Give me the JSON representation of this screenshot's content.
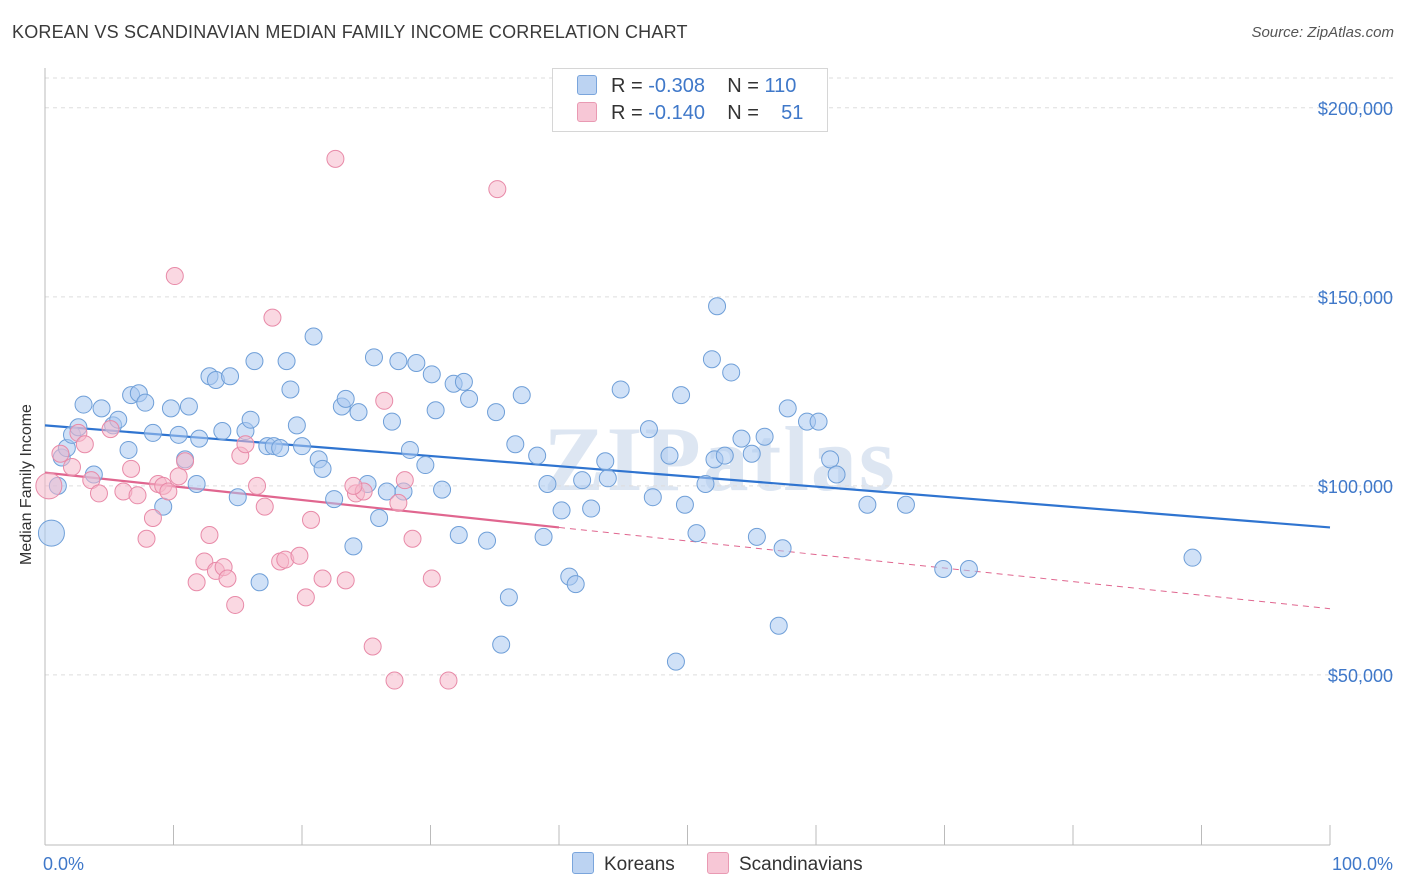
{
  "title": "KOREAN VS SCANDINAVIAN MEDIAN FAMILY INCOME CORRELATION CHART",
  "source": "Source: ZipAtlas.com",
  "watermark": "ZIPatlas",
  "legend": {
    "row1": {
      "r_label": "R =",
      "r_value": "-0.308",
      "n_label": "N =",
      "n_value": "110"
    },
    "row2": {
      "r_label": "R =",
      "r_value": "-0.140",
      "n_label": "N =",
      "n_value": "51"
    }
  },
  "bottom_legend": {
    "koreans": "Koreans",
    "scandinavians": "Scandinavians"
  },
  "colors": {
    "blue_fill": "#a9c8f0",
    "blue_stroke": "#6f9fd8",
    "blue_line": "#2f74d0",
    "pink_fill": "#f5b8cb",
    "pink_stroke": "#e88aa8",
    "pink_line": "#e0668f",
    "axis_text": "#3f78c9"
  },
  "chart_data": {
    "type": "scatter",
    "title": "KOREAN VS SCANDINAVIAN MEDIAN FAMILY INCOME CORRELATION CHART",
    "xlabel": "",
    "ylabel": "Median Family Income",
    "xlim": [
      0,
      100
    ],
    "ylim": [
      5000,
      210000
    ],
    "x_tick_labels": [
      "0.0%",
      "100.0%"
    ],
    "y_ticks": [
      50000,
      100000,
      150000,
      200000
    ],
    "y_tick_labels": [
      "$50,000",
      "$100,000",
      "$150,000",
      "$200,000"
    ],
    "grid": "horizontal dashed",
    "legend_position": "top-center",
    "series": [
      {
        "name": "Koreans",
        "r": -0.308,
        "n": 110,
        "trend": {
          "x": [
            0,
            100
          ],
          "y": [
            116000,
            89000
          ]
        },
        "points": [
          [
            0.5,
            87500
          ],
          [
            1,
            100000
          ],
          [
            1.3,
            107500
          ],
          [
            1.7,
            110000
          ],
          [
            2.1,
            113500
          ],
          [
            2.6,
            115500
          ],
          [
            3,
            121500
          ],
          [
            3.8,
            103000
          ],
          [
            4.4,
            120500
          ],
          [
            5.3,
            116000
          ],
          [
            5.7,
            117500
          ],
          [
            6.5,
            109500
          ],
          [
            6.7,
            124000
          ],
          [
            7.3,
            124500
          ],
          [
            7.8,
            122000
          ],
          [
            8.4,
            114000
          ],
          [
            9.2,
            94500
          ],
          [
            9.8,
            120500
          ],
          [
            10.4,
            113500
          ],
          [
            10.9,
            107000
          ],
          [
            11.2,
            121000
          ],
          [
            11.8,
            100500
          ],
          [
            12,
            112500
          ],
          [
            12.8,
            129000
          ],
          [
            13.3,
            128000
          ],
          [
            13.8,
            114500
          ],
          [
            14.4,
            129000
          ],
          [
            15,
            97000
          ],
          [
            15.6,
            114500
          ],
          [
            16,
            117500
          ],
          [
            16.3,
            133000
          ],
          [
            16.7,
            74500
          ],
          [
            17.3,
            110500
          ],
          [
            17.8,
            110500
          ],
          [
            18.3,
            110000
          ],
          [
            18.8,
            133000
          ],
          [
            19.1,
            125500
          ],
          [
            19.6,
            116000
          ],
          [
            20,
            110500
          ],
          [
            20.9,
            139500
          ],
          [
            21.3,
            107000
          ],
          [
            21.6,
            104500
          ],
          [
            22.5,
            96500
          ],
          [
            23.1,
            121000
          ],
          [
            23.4,
            123000
          ],
          [
            24,
            84000
          ],
          [
            24.4,
            119500
          ],
          [
            25.1,
            100500
          ],
          [
            25.6,
            134000
          ],
          [
            26,
            91500
          ],
          [
            26.6,
            98500
          ],
          [
            27,
            117000
          ],
          [
            27.5,
            133000
          ],
          [
            27.9,
            98500
          ],
          [
            28.4,
            109500
          ],
          [
            28.9,
            132500
          ],
          [
            29.6,
            105500
          ],
          [
            30.1,
            129500
          ],
          [
            30.4,
            120000
          ],
          [
            30.9,
            99000
          ],
          [
            31.8,
            127000
          ],
          [
            32.2,
            87000
          ],
          [
            32.6,
            127500
          ],
          [
            33,
            123000
          ],
          [
            34.4,
            85500
          ],
          [
            35.1,
            119500
          ],
          [
            35.5,
            58000
          ],
          [
            36.1,
            70500
          ],
          [
            36.6,
            111000
          ],
          [
            37.1,
            124000
          ],
          [
            38.3,
            108000
          ],
          [
            38.8,
            86500
          ],
          [
            39.1,
            100500
          ],
          [
            40.2,
            93500
          ],
          [
            40.8,
            76000
          ],
          [
            41.3,
            74000
          ],
          [
            41.8,
            101500
          ],
          [
            42.5,
            94000
          ],
          [
            43.6,
            106500
          ],
          [
            43.8,
            102000
          ],
          [
            44.8,
            125500
          ],
          [
            47,
            115000
          ],
          [
            47.3,
            97000
          ],
          [
            48.6,
            108000
          ],
          [
            49.1,
            53500
          ],
          [
            49.5,
            124000
          ],
          [
            49.8,
            95000
          ],
          [
            50.7,
            87500
          ],
          [
            51.4,
            100500
          ],
          [
            51.9,
            133500
          ],
          [
            52.1,
            107000
          ],
          [
            52.9,
            108000
          ],
          [
            53.4,
            130000
          ],
          [
            54.2,
            112500
          ],
          [
            55,
            108500
          ],
          [
            55.4,
            86500
          ],
          [
            56,
            113000
          ],
          [
            57.1,
            63000
          ],
          [
            57.4,
            83500
          ],
          [
            57.8,
            120500
          ],
          [
            59.3,
            117000
          ],
          [
            60.2,
            117000
          ],
          [
            61.1,
            107000
          ],
          [
            61.6,
            103000
          ],
          [
            64,
            95000
          ],
          [
            67,
            95000
          ],
          [
            69.9,
            78000
          ],
          [
            71.9,
            78000
          ],
          [
            89.3,
            81000
          ],
          [
            52.3,
            147500
          ]
        ]
      },
      {
        "name": "Scandinavians",
        "r": -0.14,
        "n": 51,
        "trend": {
          "x": [
            0,
            40
          ],
          "y": [
            103500,
            89000
          ]
        },
        "trend_extension": {
          "x": [
            40,
            100
          ],
          "y": [
            89000,
            67500
          ]
        },
        "points": [
          [
            0.3,
            100000
          ],
          [
            1.2,
            108500
          ],
          [
            2.1,
            105000
          ],
          [
            2.6,
            114000
          ],
          [
            3.1,
            111000
          ],
          [
            3.6,
            101500
          ],
          [
            4.2,
            98000
          ],
          [
            5.1,
            115000
          ],
          [
            6.1,
            98500
          ],
          [
            6.7,
            104500
          ],
          [
            7.2,
            97500
          ],
          [
            7.9,
            86000
          ],
          [
            8.4,
            91500
          ],
          [
            8.8,
            100500
          ],
          [
            9.2,
            100000
          ],
          [
            9.6,
            98500
          ],
          [
            10.1,
            155500
          ],
          [
            10.4,
            102500
          ],
          [
            10.9,
            106500
          ],
          [
            11.8,
            74500
          ],
          [
            12.4,
            80000
          ],
          [
            12.8,
            87000
          ],
          [
            13.3,
            77500
          ],
          [
            13.9,
            78500
          ],
          [
            14.2,
            75500
          ],
          [
            14.8,
            68500
          ],
          [
            15.2,
            108000
          ],
          [
            15.6,
            111000
          ],
          [
            16.5,
            100000
          ],
          [
            17.1,
            94500
          ],
          [
            17.7,
            144500
          ],
          [
            18.3,
            80000
          ],
          [
            18.7,
            80500
          ],
          [
            19.8,
            81500
          ],
          [
            20.3,
            70500
          ],
          [
            20.7,
            91000
          ],
          [
            21.6,
            75500
          ],
          [
            22.6,
            186500
          ],
          [
            23.4,
            75000
          ],
          [
            24.2,
            98000
          ],
          [
            24.8,
            98500
          ],
          [
            25.5,
            57500
          ],
          [
            26.4,
            122500
          ],
          [
            27.2,
            48500
          ],
          [
            28.6,
            86000
          ],
          [
            30.1,
            75500
          ],
          [
            31.4,
            48500
          ],
          [
            35.2,
            178500
          ],
          [
            27.5,
            95500
          ],
          [
            28,
            101500
          ],
          [
            24,
            100000
          ]
        ]
      }
    ]
  }
}
